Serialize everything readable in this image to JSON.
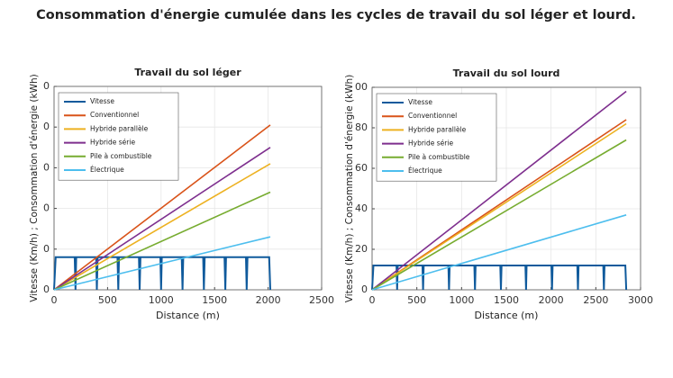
{
  "title": "Consommation d'énergie cumulée dans les cycles de travail du sol léger et lourd.",
  "chart_data": [
    {
      "type": "line",
      "title": "Travail du sol léger",
      "x_label": "Distance (m)",
      "y_label": "Vitesse (Km/h) ; Consommation d'énergie (kWh)",
      "xlim": [
        0,
        2500
      ],
      "xticks": [
        0,
        500,
        1000,
        1500,
        2000,
        2500
      ],
      "ylim": [
        0,
        100
      ],
      "yticks": [
        0,
        {
          "value": 20,
          "label": "0"
        },
        {
          "value": 40,
          "label": "0"
        },
        {
          "value": 60,
          "label": "0"
        },
        {
          "value": 80,
          "label": "0"
        },
        {
          "value": 100,
          "label": "0"
        }
      ],
      "grid": true,
      "legend": "upper left",
      "series": [
        {
          "name": "Vitesse",
          "color": "#0f5a9c",
          "x": [
            0,
            15,
            193,
            200,
            207,
            393,
            400,
            407,
            593,
            600,
            607,
            793,
            800,
            807,
            993,
            1000,
            1007,
            1193,
            1200,
            1207,
            1393,
            1400,
            1407,
            1593,
            1600,
            1607,
            1793,
            1800,
            1807,
            2010,
            2020
          ],
          "values": [
            0,
            16,
            16,
            0,
            16,
            16,
            0,
            16,
            16,
            0,
            16,
            16,
            0,
            16,
            16,
            0,
            16,
            16,
            0,
            16,
            16,
            0,
            16,
            16,
            0,
            16,
            16,
            0,
            16,
            16,
            0
          ]
        },
        {
          "name": "Conventionnel",
          "color": "#d95319",
          "x": [
            0,
            2020
          ],
          "values": [
            0,
            81
          ]
        },
        {
          "name": "Hybride parallèle",
          "color": "#edb120",
          "x": [
            0,
            2020
          ],
          "values": [
            0,
            62
          ]
        },
        {
          "name": "Hybride série",
          "color": "#7e2f8e",
          "x": [
            0,
            2020
          ],
          "values": [
            0,
            70
          ]
        },
        {
          "name": "Pile à combustible",
          "color": "#77ac30",
          "x": [
            0,
            2020
          ],
          "values": [
            0,
            48
          ]
        },
        {
          "name": "Électrique",
          "color": "#4dbeee",
          "x": [
            0,
            2020
          ],
          "values": [
            0,
            26
          ]
        }
      ]
    },
    {
      "type": "line",
      "title": "Travail du sol lourd",
      "x_label": "Distance (m)",
      "y_label": "Vitesse (Km/h) ; Consommation d'énergie (kWh)",
      "xlim": [
        0,
        3000
      ],
      "xticks": [
        0,
        500,
        1000,
        1500,
        2000,
        2500,
        3000
      ],
      "ylim": [
        0,
        100
      ],
      "yticks": [
        0,
        20,
        40,
        60,
        80,
        {
          "value": 100,
          "label": "00"
        }
      ],
      "grid": true,
      "legend": "upper left",
      "series": [
        {
          "name": "Vitesse",
          "color": "#0f5a9c",
          "x": [
            0,
            15,
            273,
            280,
            287,
            563,
            570,
            577,
            853,
            860,
            867,
            1143,
            1150,
            1157,
            1433,
            1440,
            1447,
            1713,
            1720,
            1727,
            2003,
            2010,
            2017,
            2293,
            2300,
            2307,
            2583,
            2590,
            2597,
            2830,
            2840
          ],
          "values": [
            0,
            12,
            12,
            0,
            12,
            12,
            0,
            12,
            12,
            0,
            12,
            12,
            0,
            12,
            12,
            0,
            12,
            12,
            0,
            12,
            12,
            0,
            12,
            12,
            0,
            12,
            12,
            0,
            12,
            12,
            0
          ]
        },
        {
          "name": "Conventionnel",
          "color": "#d95319",
          "x": [
            0,
            2840
          ],
          "values": [
            0,
            84
          ]
        },
        {
          "name": "Hybride parallèle",
          "color": "#edb120",
          "x": [
            0,
            2840
          ],
          "values": [
            0,
            82
          ]
        },
        {
          "name": "Hybride série",
          "color": "#7e2f8e",
          "x": [
            0,
            2840
          ],
          "values": [
            0,
            98
          ]
        },
        {
          "name": "Pile à combustible",
          "color": "#77ac30",
          "x": [
            0,
            2840
          ],
          "values": [
            0,
            74
          ]
        },
        {
          "name": "Électrique",
          "color": "#4dbeee",
          "x": [
            0,
            2840
          ],
          "values": [
            0,
            37
          ]
        }
      ]
    }
  ]
}
